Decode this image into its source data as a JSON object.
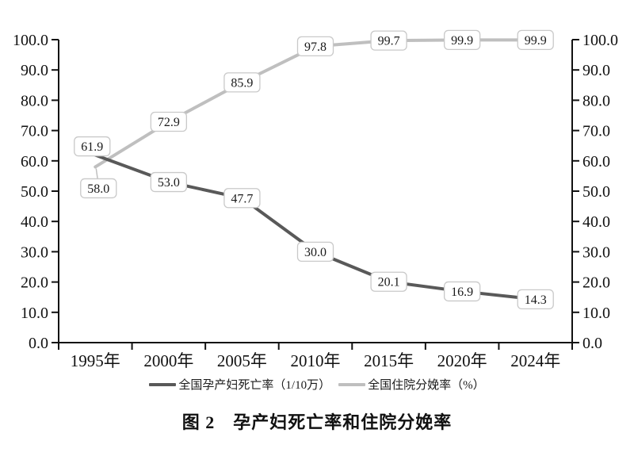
{
  "figure": {
    "caption": "图 2　孕产妇死亡率和住院分娩率"
  },
  "chart_data": {
    "type": "line",
    "title": "图 2　孕产妇死亡率和住院分娩率",
    "categories": [
      "1995年",
      "2000年",
      "2005年",
      "2010年",
      "2015年",
      "2020年",
      "2024年"
    ],
    "series": [
      {
        "name": "全国孕产妇死亡率（1/10万）",
        "values": [
          61.9,
          53.0,
          47.7,
          30.0,
          20.1,
          16.9,
          14.3
        ],
        "color": "#595959"
      },
      {
        "name": "全国住院分娩率（%）",
        "values": [
          58.0,
          72.9,
          85.9,
          97.8,
          99.7,
          99.9,
          99.9
        ],
        "color": "#bfbfbf"
      }
    ],
    "ylim": [
      0,
      100
    ],
    "ytick_step": 10,
    "ytick_labels": [
      "0.0",
      "10.0",
      "20.0",
      "30.0",
      "40.0",
      "50.0",
      "60.0",
      "70.0",
      "80.0",
      "90.0",
      "100.0"
    ],
    "y_axis_left": true,
    "y_axis_right": true,
    "xlabel": "",
    "ylabel": "",
    "grid": false,
    "data_labels": true,
    "legend_position": "bottom",
    "axis_color": "#111111",
    "label_box": {
      "fill": "#ffffff",
      "border": "#c9c9c9",
      "text_color": "#1a1a1a"
    }
  }
}
